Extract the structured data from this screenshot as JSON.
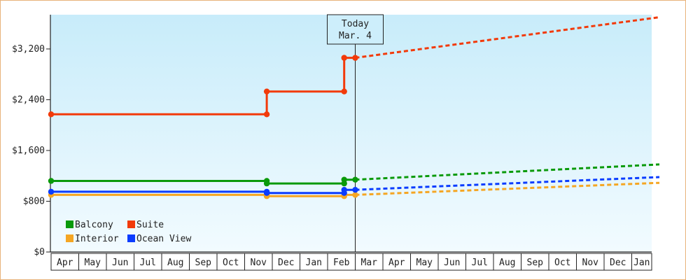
{
  "chart_data": {
    "type": "line",
    "title": "",
    "xlabel": "",
    "ylabel": "",
    "ylim": [
      0,
      3200
    ],
    "yticks": [
      0,
      800,
      1600,
      2400,
      3200
    ],
    "ytick_labels": [
      "$0",
      "$800",
      "$1,600",
      "$2,400",
      "$3,200"
    ],
    "xtick_labels": [
      "Apr",
      "May",
      "Jun",
      "Jul",
      "Aug",
      "Sep",
      "Oct",
      "Nov",
      "Dec",
      "Jan",
      "Feb",
      "Mar",
      "Apr",
      "May",
      "Jun",
      "Jul",
      "Aug",
      "Sep",
      "Oct",
      "Nov",
      "Dec",
      "Jan"
    ],
    "today_marker": {
      "line1": "Today",
      "line2": "Mar. 4",
      "month_index": 11
    },
    "legend_position": "bottom-left",
    "grid": false,
    "series": [
      {
        "name": "Balcony",
        "color": "#0a9a0a",
        "history": [
          [
            0,
            1120
          ],
          [
            7.8,
            1120
          ],
          [
            7.8,
            1080
          ],
          [
            10.6,
            1080
          ],
          [
            10.6,
            1140
          ],
          [
            11.0,
            1140
          ]
        ],
        "forecast": [
          [
            11.0,
            1140
          ],
          [
            22.0,
            1380
          ]
        ]
      },
      {
        "name": "Suite",
        "color": "#f23a0a",
        "history": [
          [
            0,
            2170
          ],
          [
            7.8,
            2170
          ],
          [
            7.8,
            2530
          ],
          [
            10.6,
            2530
          ],
          [
            10.6,
            3060
          ],
          [
            11.0,
            3060
          ]
        ],
        "forecast": [
          [
            11.0,
            3060
          ],
          [
            22.0,
            3700
          ]
        ]
      },
      {
        "name": "Interior",
        "color": "#f5a623",
        "history": [
          [
            0,
            900
          ],
          [
            7.8,
            900
          ],
          [
            7.8,
            880
          ],
          [
            10.6,
            880
          ],
          [
            10.6,
            900
          ],
          [
            11.0,
            900
          ]
        ],
        "forecast": [
          [
            11.0,
            900
          ],
          [
            22.0,
            1090
          ]
        ]
      },
      {
        "name": "Ocean View",
        "color": "#0a3cff",
        "history": [
          [
            0,
            950
          ],
          [
            7.8,
            950
          ],
          [
            7.8,
            930
          ],
          [
            10.6,
            930
          ],
          [
            10.6,
            980
          ],
          [
            11.0,
            980
          ]
        ],
        "forecast": [
          [
            11.0,
            980
          ],
          [
            22.0,
            1180
          ]
        ]
      }
    ]
  }
}
